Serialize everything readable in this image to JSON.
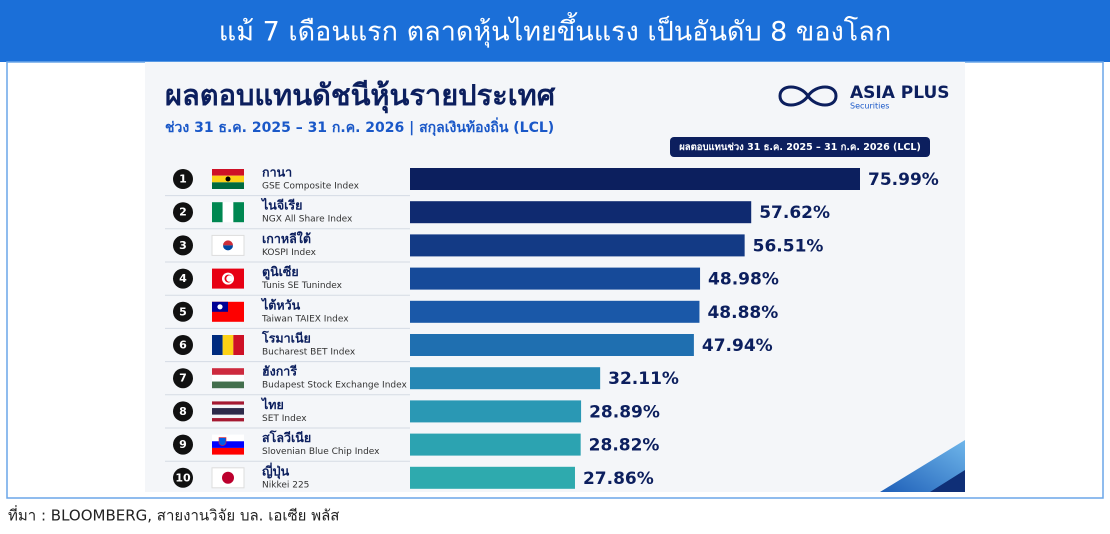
{
  "banner": "แม้ 7 เดือนแรก ตลาดหุ้นไทยขึ้นแรง เป็นอันดับ 8 ของโลก",
  "source": "ที่มา : BLOOMBERG, สายงานวิจัย บล. เอเซีย พลัส",
  "chart_data": {
    "type": "bar",
    "orientation": "horizontal",
    "title": "ผลตอบแทนดัชนีหุ้นรายประเทศ",
    "subtitle": "ช่วง 31 ธ.ค. 2025 – 31 ก.ค. 2026 | สกุลเงินท้องถิ่น (LCL)",
    "legend_label": "ผลตอบแทนช่วง 31 ธ.ค. 2025 – 31 ก.ค. 2026 (LCL)",
    "logo": {
      "name": "ASIA PLUS",
      "tagline": "Securities"
    },
    "ranks": [
      1,
      2,
      3,
      4,
      5,
      6,
      7,
      8,
      9,
      10
    ],
    "categories": [
      "กานา",
      "ไนจีเรีย",
      "เกาหลีใต้",
      "ตูนิเซีย",
      "ไต้หวัน",
      "โรมาเนีย",
      "ฮังการี",
      "ไทย",
      "สโลวีเนีย",
      "ญี่ปุ่น"
    ],
    "index_names": [
      "GSE Composite Index",
      "NGX All Share Index",
      "KOSPI Index",
      "Tunis SE Tunindex",
      "Taiwan TAIEX Index",
      "Bucharest BET Index",
      "Budapest Stock Exchange Index",
      "SET Index",
      "Slovenian Blue Chip Index",
      "Nikkei 225"
    ],
    "values": [
      75.99,
      57.62,
      56.51,
      48.98,
      48.88,
      47.94,
      32.11,
      28.89,
      28.82,
      27.86
    ],
    "value_labels": [
      "75.99%",
      "57.62%",
      "56.51%",
      "48.98%",
      "48.88%",
      "47.94%",
      "32.11%",
      "28.89%",
      "28.82%",
      "27.86%"
    ],
    "colors": [
      "#0c1f5e",
      "#0f2a70",
      "#133a85",
      "#164a99",
      "#1a58a8",
      "#1f6fb0",
      "#2687b4",
      "#2a98b4",
      "#2ca3b1",
      "#2eaaae"
    ]
  }
}
